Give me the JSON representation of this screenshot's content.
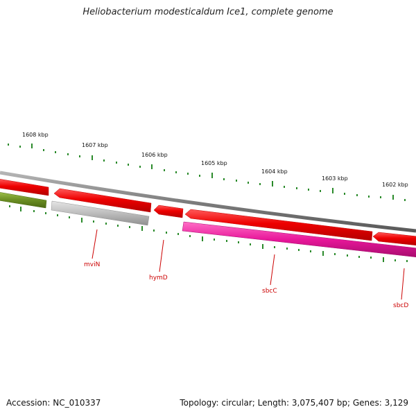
{
  "title": "Heliobacterium modesticaldum Ice1, complete genome",
  "footer": {
    "accession": "Accession: NC_010337",
    "summary": "Topology: circular; Length: 3,075,407 bp; Genes: 3,129"
  },
  "colors": {
    "backbone": "#7d7d7d",
    "forward_gene": "#ee0000",
    "reverse_red": "#ee0000",
    "reverse_olive": "#6b8e23",
    "reverse_grey": "#bdbdbd",
    "reverse_pink": "#e8179a",
    "tick": "#2a8a2a",
    "label": "#cc0000"
  },
  "kbp_labels": [
    "1608 kbp",
    "1607 kbp",
    "1606 kbp",
    "1605 kbp",
    "1604 kbp",
    "1603 kbp",
    "1602 kbp"
  ],
  "genes": [
    {
      "strand": "forward",
      "color": "forward_gene"
    },
    {
      "strand": "forward",
      "color": "forward_gene"
    },
    {
      "strand": "forward",
      "color": "forward_gene"
    },
    {
      "strand": "forward",
      "color": "forward_gene"
    },
    {
      "strand": "forward",
      "color": "forward_gene"
    },
    {
      "strand": "reverse",
      "color": "reverse_olive"
    },
    {
      "strand": "reverse",
      "color": "reverse_grey"
    },
    {
      "strand": "reverse",
      "color": "reverse_pink"
    }
  ],
  "gene_labels": [
    "mviN",
    "hymD",
    "sbcC",
    "sbcD"
  ]
}
